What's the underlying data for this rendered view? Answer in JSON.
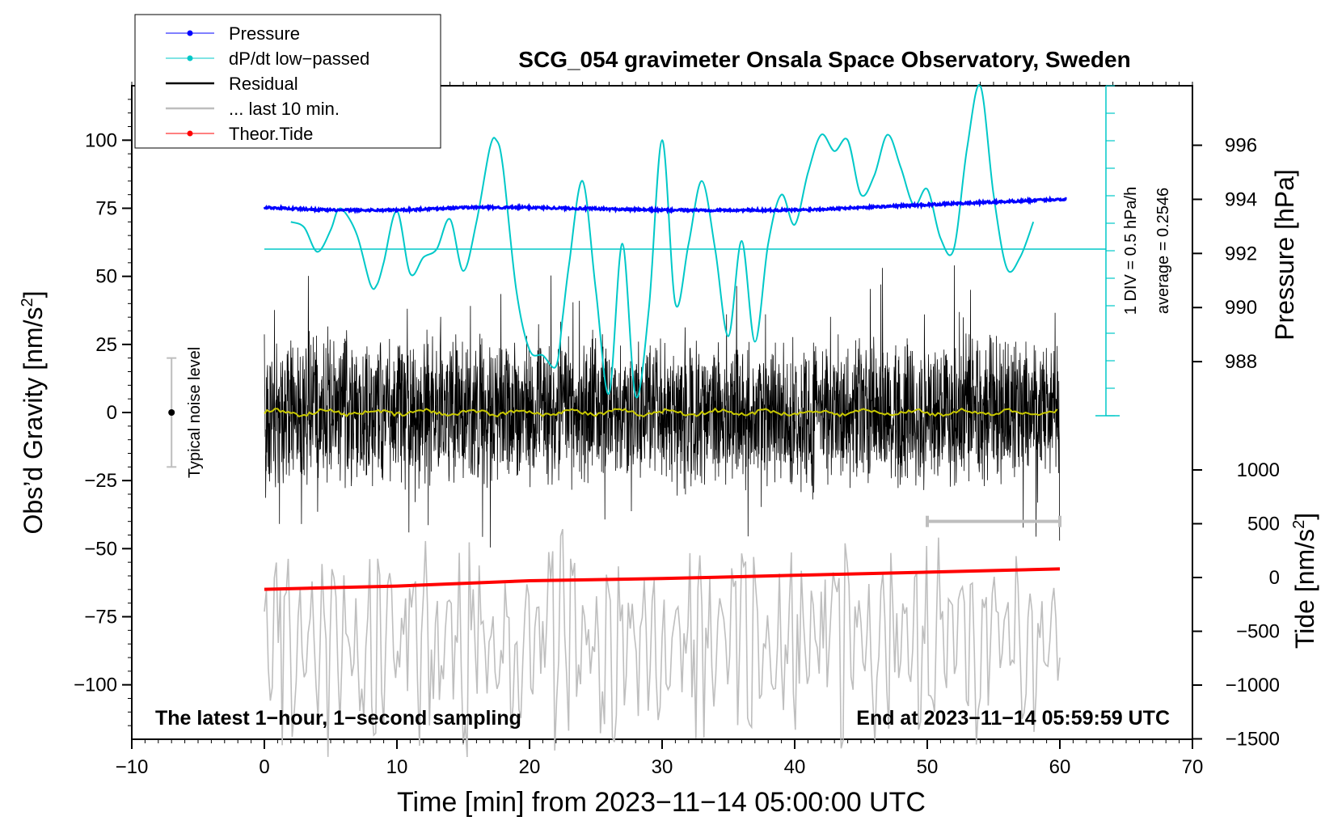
{
  "chart_data": {
    "type": "line",
    "title": "SCG_054 gravimeter Onsala Space Observatory, Sweden",
    "xlabel": "Time [min] from 2023−11−14 05:00:00 UTC",
    "ylabel_left": "Obs’d Gravity [nm/s",
    "ylabel_left_sup": "2",
    "ylabel_left_close": "]",
    "ylabel_pressure": "Pressure [hPa]",
    "ylabel_tide": "Tide [nm/s",
    "ylabel_tide_sup": "2",
    "ylabel_tide_close": "]",
    "xlim": [
      -10,
      70
    ],
    "ylim_gravity": [
      -120,
      120
    ],
    "ylim_pressure": [
      986.0,
      998.2
    ],
    "ylim_tide": [
      -1500,
      1500
    ],
    "x_ticks": [
      "−10",
      "0",
      "10",
      "20",
      "30",
      "40",
      "50",
      "60",
      "70"
    ],
    "y_ticks_left": [
      "100",
      "75",
      "50",
      "25",
      "0",
      "−25",
      "−50",
      "−75",
      "−100"
    ],
    "y_ticks_pressure": [
      "996",
      "994",
      "992",
      "990",
      "988"
    ],
    "y_ticks_tide": [
      "1000",
      "500",
      "0",
      "−500",
      "−1000",
      "−1500"
    ],
    "legend": [
      {
        "label": "Pressure",
        "color": "#0000ff",
        "marker": true
      },
      {
        "label": "dP/dt low−passed",
        "color": "#00c8c8",
        "marker": true
      },
      {
        "label": "Residual",
        "color": "#000000",
        "marker": false
      },
      {
        "label": "... last 10 min.",
        "color": "#bebebe",
        "marker": false
      },
      {
        "label": "Theor.Tide",
        "color": "#ff0000",
        "marker": true
      }
    ],
    "annotations": {
      "noise_label": "Typical noise level",
      "dpdt_div": "1 DIV = 0.5 hPa/h",
      "dpdt_avg": "average = 0.2546",
      "bottom_left": "The latest 1−hour, 1−second sampling",
      "bottom_right": "End at 2023−11−14 05:59:59 UTC"
    },
    "noise_bar": {
      "x": -7,
      "y_low": -20,
      "y_high": 20,
      "center": 0
    },
    "last10_bar": {
      "x_start": 50,
      "x_end": 60,
      "y": -40
    },
    "series": [
      {
        "name": "Pressure",
        "axis": "pressure",
        "color": "#0000ff",
        "x": [
          0,
          5,
          10,
          15,
          20,
          25,
          30,
          35,
          40,
          45,
          50,
          55,
          60
        ],
        "y": [
          993.7,
          993.6,
          993.6,
          993.7,
          993.7,
          993.65,
          993.6,
          993.6,
          993.6,
          993.7,
          993.8,
          993.9,
          994.0
        ]
      },
      {
        "name": "dP/dt low-passed",
        "axis": "gravity",
        "color": "#00c8c8",
        "x": [
          2,
          3,
          4,
          5,
          5.5,
          6,
          7,
          8,
          8.5,
          9,
          10,
          11,
          12,
          13,
          14,
          15,
          16,
          17,
          17.5,
          18,
          19,
          20,
          21,
          22,
          22.5,
          23,
          24,
          25,
          26,
          27,
          28,
          29,
          30,
          31,
          32,
          33,
          34,
          35,
          36,
          37,
          38,
          39,
          40,
          41,
          42,
          43,
          44,
          45,
          46,
          47,
          48,
          49,
          50,
          51,
          52,
          53,
          54,
          55,
          56,
          57,
          58
        ],
        "y": [
          70,
          68,
          59,
          67,
          74,
          74,
          65,
          47,
          47,
          55,
          74,
          51,
          57,
          60,
          71,
          52,
          70,
          97,
          100,
          90,
          45,
          23,
          21,
          17,
          35,
          55,
          85,
          45,
          7,
          62,
          6,
          38,
          100,
          40,
          62,
          85,
          60,
          28,
          63,
          26,
          62,
          80,
          69,
          88,
          102,
          96,
          100,
          80,
          87,
          102,
          90,
          76,
          82,
          64,
          60,
          97,
          120,
          80,
          53,
          57,
          70
        ]
      },
      {
        "name": "Residual",
        "axis": "gravity",
        "color": "#000000",
        "x": [
          0,
          60
        ],
        "y": [
          0,
          0
        ],
        "envelope": 30
      },
      {
        "name": "... last 10 min.",
        "axis": "tide",
        "color": "#bebebe",
        "x": [
          0,
          60
        ],
        "y": [
          -600,
          -600
        ],
        "envelope": 1400
      },
      {
        "name": "Theor.Tide",
        "axis": "tide",
        "color": "#ff0000",
        "x": [
          0,
          10,
          20,
          30,
          40,
          50,
          60
        ],
        "y": [
          -110,
          -80,
          -30,
          -10,
          20,
          50,
          80
        ]
      }
    ]
  }
}
